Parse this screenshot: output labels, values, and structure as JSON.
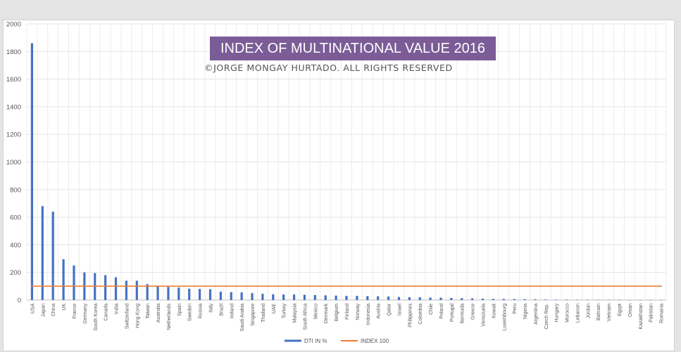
{
  "chart_data": {
    "type": "bar",
    "title": "INDEX OF MULTINATIONAL VALUE 2016",
    "subtitle": "©JORGE MONGAY HURTADO. ALL RIGHTS RESERVED",
    "xlabel": "",
    "ylabel": "",
    "ylim": [
      0,
      2000
    ],
    "yticks": [
      0,
      200,
      400,
      600,
      800,
      1000,
      1200,
      1400,
      1600,
      1800,
      2000
    ],
    "grid": true,
    "legend_position": "bottom",
    "categories": [
      "USA",
      "Japan",
      "China",
      "UK",
      "France",
      "Germany",
      "South Korea",
      "Canada",
      "India",
      "Switzerland",
      "Hong Kong",
      "Taiwan",
      "Australia",
      "Netherlands",
      "Spain",
      "Sweden",
      "Russia",
      "Italy",
      "Brazil",
      "Ireland",
      "Saudi Arabia",
      "Singapore",
      "Thailand",
      "UAE",
      "Turkey",
      "Malaysia",
      "South Africa",
      "Mexico",
      "Denmark",
      "Belgium",
      "Finland",
      "Norway",
      "Indonesia",
      "Austria",
      "Qatar",
      "Israel",
      "Philippines",
      "Colombia",
      "Chile",
      "Poland",
      "Portugal",
      "Bermuda",
      "Greece",
      "Venezuela",
      "Kuwait",
      "Luxembourg",
      "Peru",
      "Nigeria",
      "Argentina",
      "Czech Rep.",
      "Hungary",
      "Morocco",
      "Lebanon",
      "Jordan",
      "Bahrain",
      "Vietnam",
      "Egypt",
      "Oman",
      "Kazakhstan",
      "Pakistan",
      "Romania"
    ],
    "series": [
      {
        "name": "DTI IN %",
        "color": "#4472c4",
        "values": [
          1860,
          680,
          640,
          295,
          250,
          200,
          195,
          180,
          165,
          140,
          140,
          115,
          105,
          95,
          90,
          82,
          80,
          78,
          60,
          57,
          55,
          50,
          45,
          42,
          40,
          40,
          38,
          36,
          34,
          32,
          30,
          30,
          28,
          27,
          25,
          22,
          20,
          20,
          18,
          17,
          15,
          13,
          12,
          10,
          8,
          8,
          7,
          6,
          5,
          4,
          3,
          3,
          2,
          2,
          2,
          2,
          2,
          1,
          1,
          1,
          1
        ]
      },
      {
        "name": "INDEX 100",
        "color": "#ed7d31",
        "constant": 100
      }
    ]
  }
}
